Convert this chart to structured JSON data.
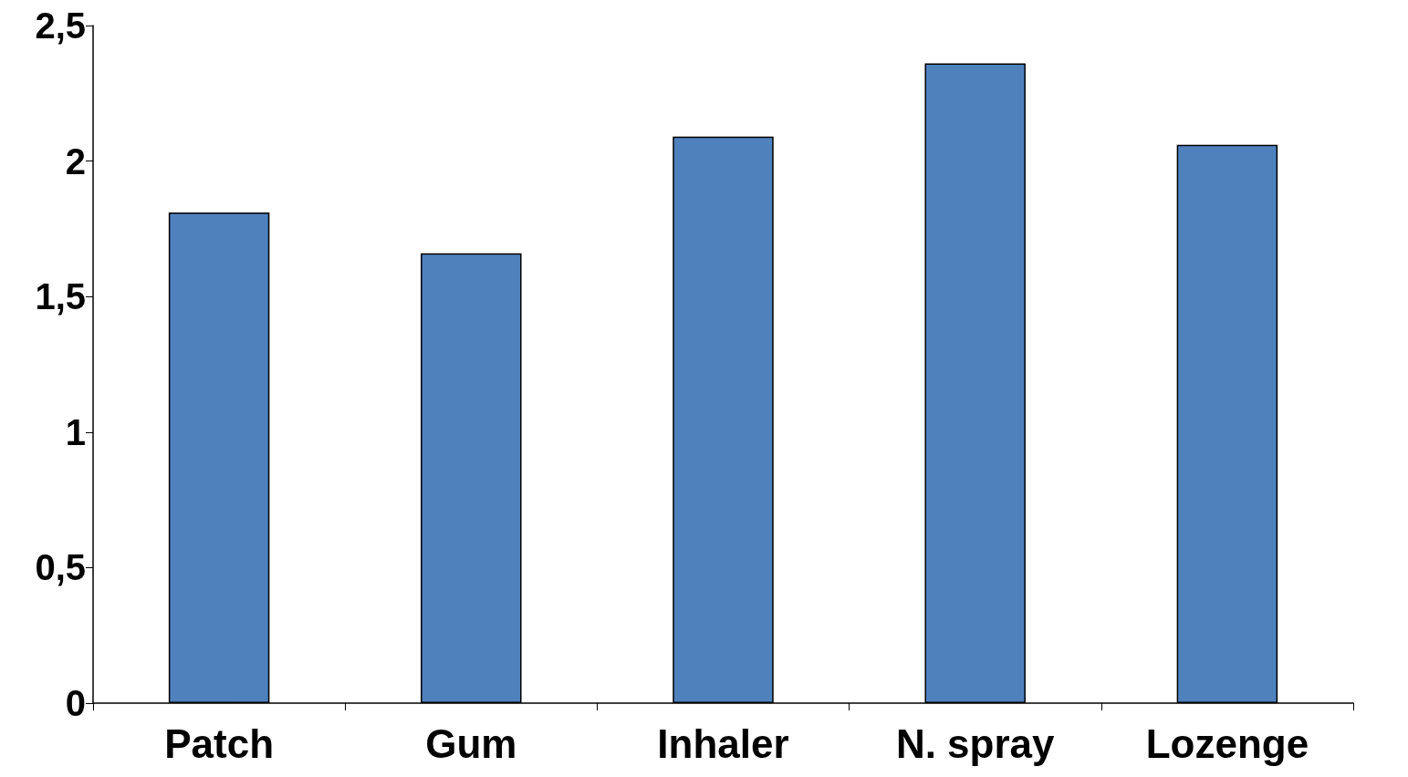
{
  "chart_data": {
    "type": "bar",
    "categories": [
      "Patch",
      "Gum",
      "Inhaler",
      "N. spray",
      "Lozenge"
    ],
    "values": [
      1.81,
      1.66,
      2.09,
      2.36,
      2.06
    ],
    "color": "#4f81bd",
    "ylim": [
      0,
      2.5
    ],
    "yticks": [
      0,
      {
        "value": 0.5,
        "label": "0,5"
      },
      1,
      {
        "value": 1.5,
        "label": "1,5"
      },
      2,
      {
        "value": 2.5,
        "label": "2,5"
      }
    ],
    "grid": false
  }
}
